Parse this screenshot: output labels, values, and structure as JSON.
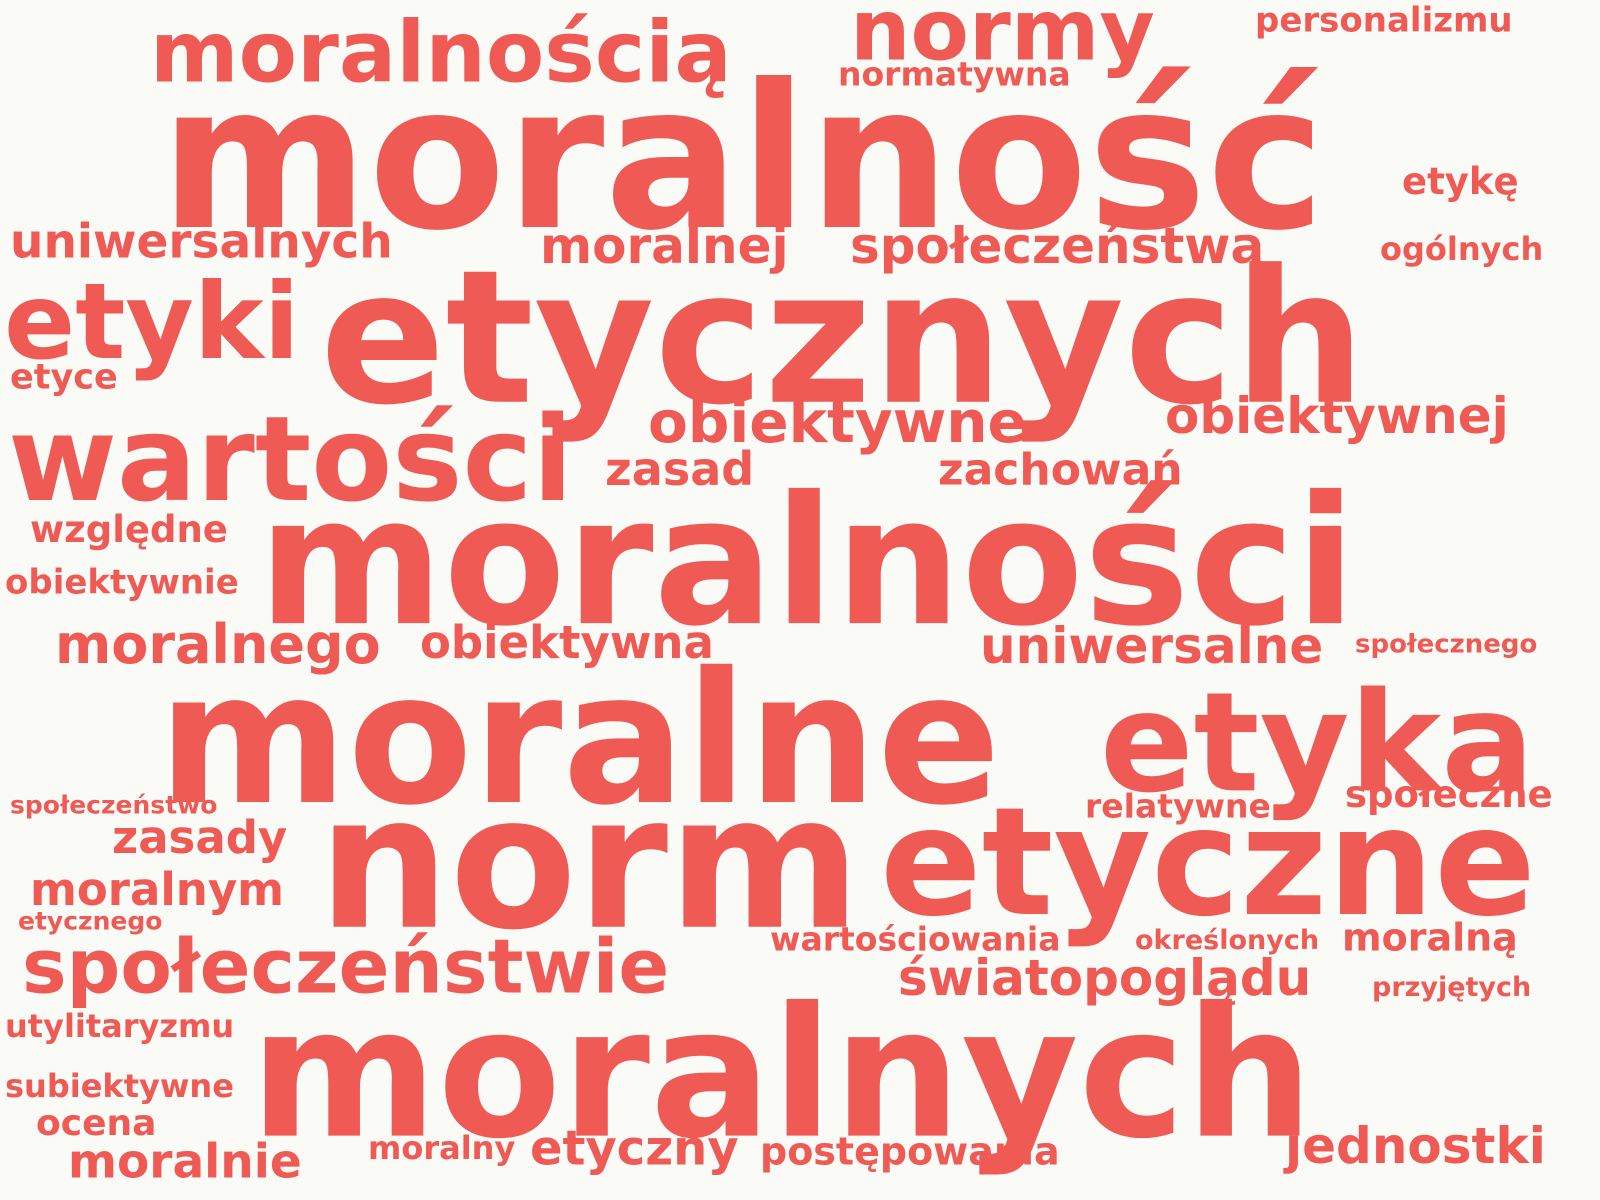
{
  "words": [
    "moralność",
    "etycznych",
    "moralności",
    "moralne",
    "norm",
    "moralnych",
    "etyczne",
    "etyka",
    "wartości",
    "moralnością",
    "normy",
    "etyki",
    "społeczeństwie",
    "obiektywne",
    "obiektywnej",
    "społeczeństwa",
    "moralnej",
    "moralnego",
    "uniwersalne",
    "światopoglądu",
    "uniwersalnych",
    "jednostki",
    "obiektywna",
    "zasad",
    "zachowań",
    "zasady",
    "moralnym",
    "etyczny",
    "moralnie",
    "personalizmu",
    "normatywna",
    "etykę",
    "ogólnych",
    "etyce",
    "względne",
    "obiektywnie",
    "społeczne",
    "relatywne",
    "wartościowania",
    "moralną",
    "postępowania",
    "społecznego",
    "społeczeństwo",
    "etycznego",
    "określonych",
    "przyjętych",
    "utylitaryzmu",
    "subiektywne",
    "ocena",
    "moralny"
  ],
  "colors": {
    "word": "#f05a55",
    "background": "#fafaf7"
  }
}
